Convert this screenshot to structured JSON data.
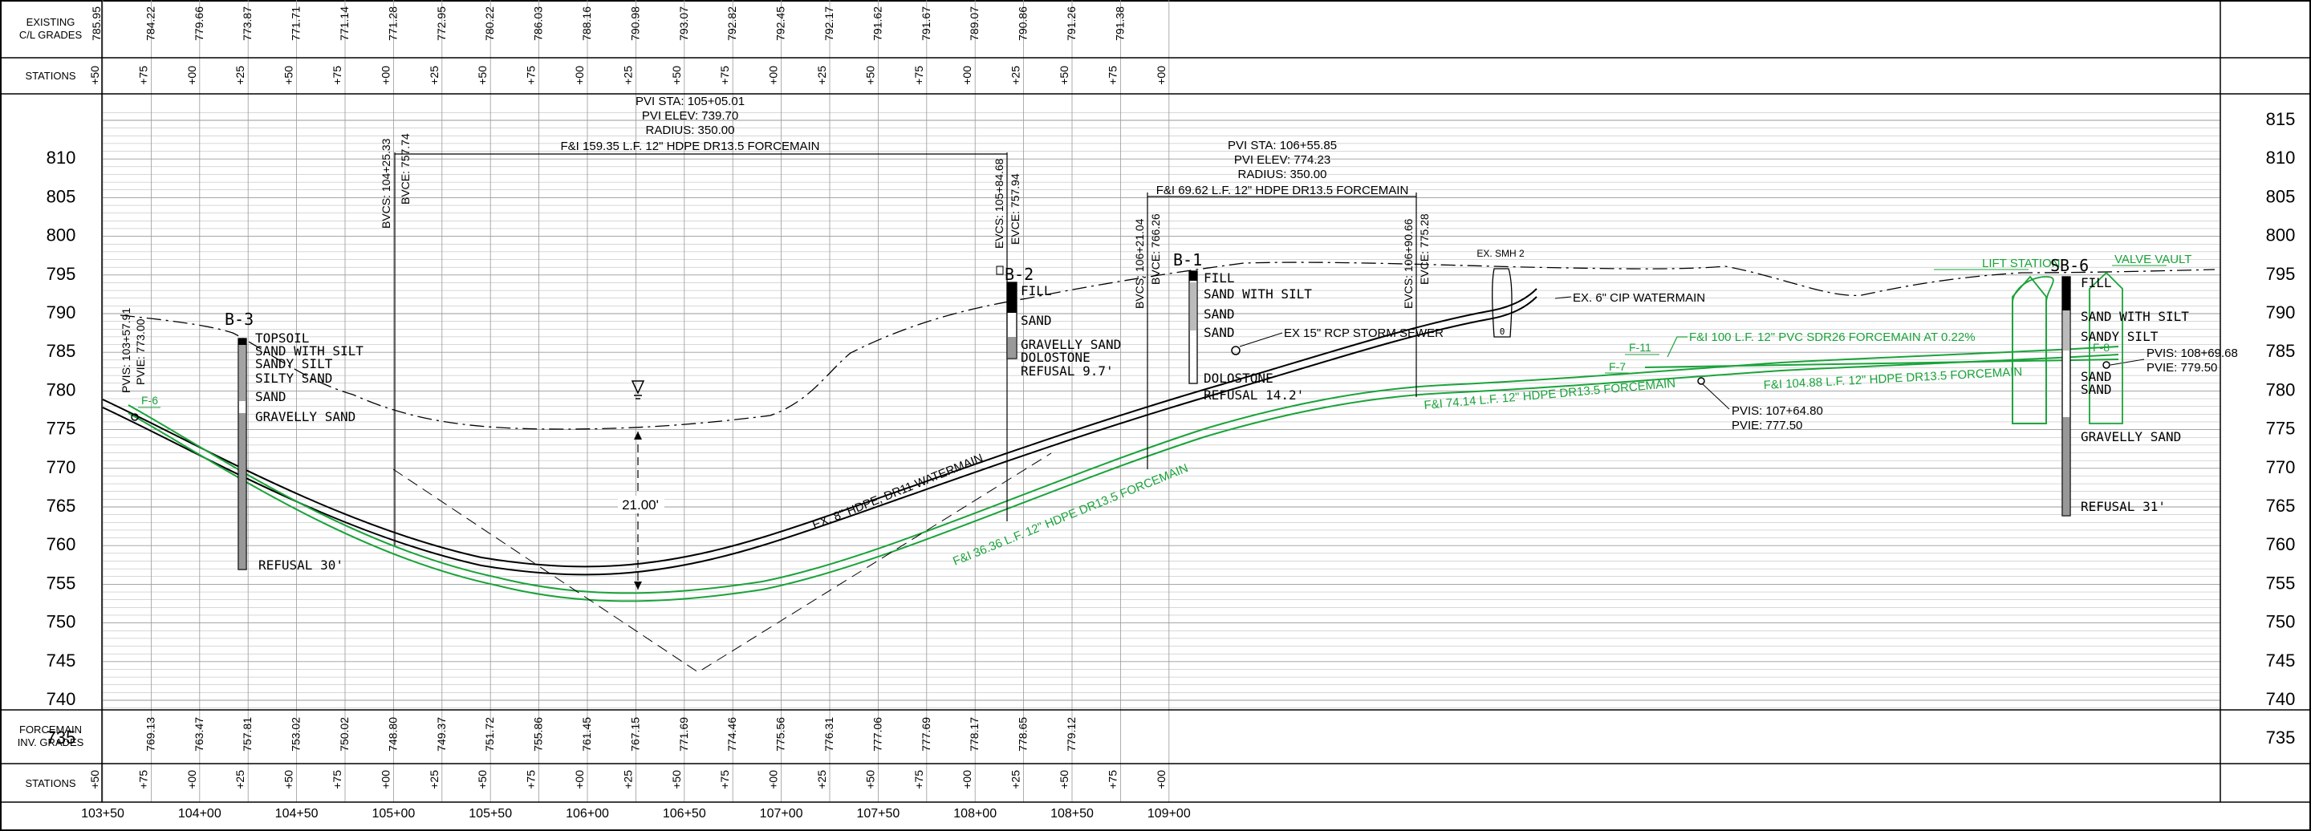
{
  "header": {
    "existing_label_line1": "EXISTING",
    "existing_label_line2": "C/L GRADES",
    "stations_label": "STATIONS",
    "existing_grades": [
      "785.95",
      "784.22",
      "779.66",
      "773.87",
      "771.71",
      "771.14",
      "771.28",
      "772.95",
      "780.22",
      "786.03",
      "788.16",
      "790.98",
      "793.07",
      "792.82",
      "792.45",
      "792.17",
      "791.62",
      "791.67",
      "789.07",
      "790.86",
      "791.26",
      "791.38"
    ],
    "station_ticks": [
      "+50",
      "+75",
      "+00",
      "+25",
      "+50",
      "+75",
      "+00",
      "+25",
      "+50",
      "+75",
      "+00",
      "+25",
      "+50",
      "+75",
      "+00",
      "+25",
      "+50",
      "+75",
      "+00",
      "+25",
      "+50",
      "+75",
      "+00"
    ]
  },
  "footer": {
    "forcemain_label_line1": "FORCEMAIN",
    "forcemain_label_line2": "INV. GRADES",
    "stations_label": "STATIONS",
    "forcemain_grades": [
      "769.13",
      "763.47",
      "757.81",
      "753.02",
      "750.02",
      "748.80",
      "749.37",
      "751.72",
      "755.86",
      "761.45",
      "767.15",
      "771.69",
      "774.46",
      "775.56",
      "776.31",
      "777.06",
      "777.69",
      "778.17",
      "778.65",
      "779.12"
    ],
    "station_ticks": [
      "+50",
      "+75",
      "+00",
      "+25",
      "+50",
      "+75",
      "+00",
      "+25",
      "+50",
      "+75",
      "+00",
      "+25",
      "+50",
      "+75",
      "+00",
      "+25",
      "+50",
      "+75",
      "+00",
      "+25",
      "+50",
      "+75",
      "+00"
    ],
    "main_stations": [
      "103+50",
      "104+00",
      "104+50",
      "105+00",
      "105+50",
      "106+00",
      "106+50",
      "107+00",
      "107+50",
      "108+00",
      "108+50",
      "109+00"
    ]
  },
  "elevations": {
    "labels": [
      "815",
      "810",
      "805",
      "800",
      "795",
      "790",
      "785",
      "780",
      "775",
      "770",
      "765",
      "760",
      "755",
      "750",
      "745",
      "740",
      "735"
    ]
  },
  "annotations": {
    "pvi1": {
      "sta": "PVI STA: 105+05.01",
      "elev": "PVI ELEV: 739.70",
      "radius": "RADIUS: 350.00"
    },
    "pvi2": {
      "sta": "PVI STA: 106+55.85",
      "elev": "PVI ELEV: 774.23",
      "radius": "RADIUS: 350.00"
    },
    "fi_159": "F&I 159.35 L.F. 12\" HDPE DR13.5 FORCEMAIN",
    "fi_69": "F&I 69.62 L.F. 12\" HDPE DR13.5 FORCEMAIN",
    "bvcs1": "BVCS: 104+25.33",
    "bvce1": "BVCE: 757.74",
    "evcs1": "EVCS: 105+84.68",
    "evce1": "EVCE: 757.94",
    "bvcs2": "BVCS: 106+21.04",
    "bvce2": "BVCE: 766.26",
    "evcs2": "EVCS: 106+90.66",
    "evce2": "EVCE: 775.28",
    "pvis_start": "PVIS: 103+57.91",
    "pvie_start": "PVIE: 773.00",
    "ex_smh": "EX. SMH 2",
    "ex_cip": "EX. 6\" CIP WATERMAIN",
    "ex_rcp": "EX 15\" RCP STORM SEWER",
    "ex_hdpe": "EX. 8\" HDPE, DR11 WATERMAIN",
    "fi_36": "F&I 36.36 L.F. 12\" HDPE DR13.5 FORCEMAIN",
    "fi_74": "F&I 74.14 L.F. 12\" HDPE DR13.5 FORCEMAIN",
    "fi_100": "F&I 100 L.F. 12\" PVC SDR26 FORCEMAIN AT 0.22%",
    "fi_104": "F&I 104.88 L.F. 12\" HDPE DR13.5 FORCEMAIN",
    "pvis_mid": "PVIS: 107+64.80",
    "pvie_mid": "PVIE: 777.50",
    "pvis_end": "PVIS: 108+69.68",
    "pvie_end": "PVIE: 779.50",
    "lift_station": "LIFT STATION",
    "valve_vault": "VALVE VAULT",
    "depth": "21.00'",
    "f6": "F-6",
    "f7": "F-7",
    "f8": "F-8",
    "f11": "F-11"
  },
  "borings": {
    "b3": {
      "name": "B-3",
      "layers": [
        "TOPSOIL",
        "SAND WITH SILT",
        "SANDY SILT",
        "SILTY SAND",
        "SAND",
        "GRAVELLY SAND"
      ],
      "refusal": "REFUSAL 30'"
    },
    "b2": {
      "name": "B-2",
      "layers": [
        "FILL",
        "SAND",
        "GRAVELLY SAND",
        "DOLOSTONE"
      ],
      "refusal": "REFUSAL 9.7'"
    },
    "b1": {
      "name": "B-1",
      "layers": [
        "FILL",
        "SAND WITH SILT",
        "SAND",
        "SAND",
        "DOLOSTONE"
      ],
      "refusal": "REFUSAL 14.2'"
    },
    "sb6": {
      "name": "SB-6",
      "layers": [
        "FILL",
        "SAND WITH SILT",
        "SANDY SILT",
        "SAND",
        "SAND",
        "GRAVELLY SAND"
      ],
      "refusal": "REFUSAL 31'"
    }
  },
  "colors": {
    "forcemain": "#1aa33a",
    "linework": "#000000",
    "grid": "#9a9a9a"
  }
}
